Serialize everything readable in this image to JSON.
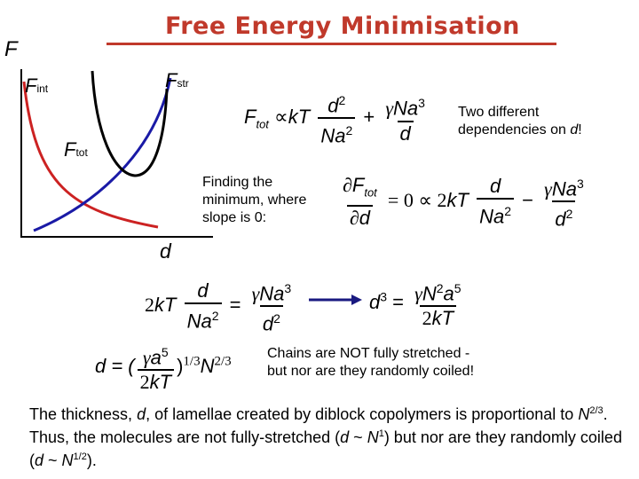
{
  "title": "Free Energy Minimisation",
  "graph": {
    "axis_y_label": "F",
    "axis_x_label": "d",
    "f_int": {
      "main": "F",
      "sub": "int"
    },
    "f_str": {
      "main": "F",
      "sub": "str"
    },
    "f_tot": {
      "main": "F",
      "sub": "tot"
    },
    "colors": {
      "f_int": "#cc2222",
      "f_str": "#1a1aa6",
      "f_tot": "#000000"
    }
  },
  "eq1": {
    "lhs_main": "F",
    "lhs_sub": "tot",
    "prop": "∝",
    "kT": "kT",
    "frac1_num": "d",
    "frac1_num_sup": "2",
    "frac1_den": "Na",
    "frac1_den_sup": "2",
    "plus": "+",
    "frac2_num_gamma": "γ",
    "frac2_num": "Na",
    "frac2_num_sup": "3",
    "frac2_den": "d"
  },
  "note_two_dependencies": {
    "line1": "Two different",
    "line2": "dependencies on ",
    "var": "d",
    "end": "!"
  },
  "note_minimum": {
    "line1": "Finding the",
    "line2": "minimum, where",
    "line3": "slope is 0:"
  },
  "eq2": {
    "partial": "∂",
    "F": "F",
    "F_sub": "tot",
    "den_partial": "∂",
    "den_d": "d",
    "equals_zero": "= 0 ∝ 2",
    "kT": "kT",
    "frac1_num": "d",
    "frac1_den": "Na",
    "frac1_den_sup": "2",
    "minus": "−",
    "frac2_num_gamma": "γ",
    "frac2_num": "Na",
    "frac2_num_sup": "3",
    "frac2_den": "d",
    "frac2_den_sup": "2"
  },
  "eq3": {
    "two": "2",
    "kT": "kT",
    "frac1_num": "d",
    "frac1_den": "Na",
    "frac1_den_sup": "2",
    "equals": "=",
    "frac2_num_gamma": "γ",
    "frac2_num": "Na",
    "frac2_num_sup": "3",
    "frac2_den": "d",
    "frac2_den_sup": "2"
  },
  "eq4": {
    "lhs": "d",
    "lhs_sup": "3",
    "equals": "=",
    "num_gamma": "γ",
    "num_N": "N",
    "num_N_sup": "2",
    "num_a": "a",
    "num_a_sup": "5",
    "den_two": "2",
    "den_kT": "kT"
  },
  "eq5": {
    "lhs": "d = (",
    "num_gamma": "γ",
    "num_a": "a",
    "num_a_sup": "5",
    "den_two": "2",
    "den_kT": "kT",
    "close": ")",
    "exp1": "1/3",
    "N": "N",
    "exp2": "2/3"
  },
  "note_chains": {
    "line1": "Chains are NOT fully stretched -",
    "line2": "but nor are they randomly coiled!"
  },
  "summary": {
    "p1": "The thickness, ",
    "d1": "d",
    "p2": ", of lamellae created by diblock copolymers is proportional to ",
    "N1": "N",
    "N1_sup": "2/3",
    "p3": ".  Thus, the molecules are not fully-stretched (",
    "d2": "d",
    "p4": " ~ ",
    "N2": "N",
    "N2_sup": "1",
    "p5": ") but nor are they randomly coiled (",
    "d3": "d",
    "p6": " ~ ",
    "N3": "N",
    "N3_sup": "1/2",
    "p7": ")."
  }
}
